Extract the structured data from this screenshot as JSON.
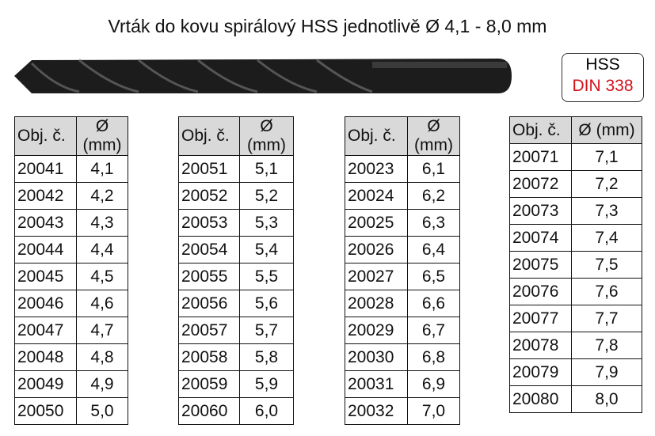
{
  "title": "Vrták do kovu spirálový HSS jednotlivě Ø 4,1 - 8,0 mm",
  "badge": {
    "line1": "HSS",
    "line2": "DIN 338"
  },
  "tables": [
    {
      "header": [
        "Obj. č.",
        "Ø (mm)"
      ],
      "rows": [
        [
          "20041",
          "4,1"
        ],
        [
          "20042",
          "4,2"
        ],
        [
          "20043",
          "4,3"
        ],
        [
          "20044",
          "4,4"
        ],
        [
          "20045",
          "4,5"
        ],
        [
          "20046",
          "4,6"
        ],
        [
          "20047",
          "4,7"
        ],
        [
          "20048",
          "4,8"
        ],
        [
          "20049",
          "4,9"
        ],
        [
          "20050",
          "5,0"
        ]
      ]
    },
    {
      "header": [
        "Obj. č.",
        "Ø (mm)"
      ],
      "rows": [
        [
          "20051",
          "5,1"
        ],
        [
          "20052",
          "5,2"
        ],
        [
          "20053",
          "5,3"
        ],
        [
          "20054",
          "5,4"
        ],
        [
          "20055",
          "5,5"
        ],
        [
          "20056",
          "5,6"
        ],
        [
          "20057",
          "5,7"
        ],
        [
          "20058",
          "5,8"
        ],
        [
          "20059",
          "5,9"
        ],
        [
          "20060",
          "6,0"
        ]
      ]
    },
    {
      "header": [
        "Obj. č.",
        "Ø (mm)"
      ],
      "rows": [
        [
          "20023",
          "6,1"
        ],
        [
          "20024",
          "6,2"
        ],
        [
          "20025",
          "6,3"
        ],
        [
          "20026",
          "6,4"
        ],
        [
          "20027",
          "6,5"
        ],
        [
          "20028",
          "6,6"
        ],
        [
          "20029",
          "6,7"
        ],
        [
          "20030",
          "6,8"
        ],
        [
          "20031",
          "6,9"
        ],
        [
          "20032",
          "7,0"
        ]
      ]
    },
    {
      "header": [
        "Obj. č.",
        "Ø (mm)"
      ],
      "rows": [
        [
          "20071",
          "7,1"
        ],
        [
          "20072",
          "7,2"
        ],
        [
          "20073",
          "7,3"
        ],
        [
          "20074",
          "7,4"
        ],
        [
          "20075",
          "7,5"
        ],
        [
          "20076",
          "7,6"
        ],
        [
          "20077",
          "7,7"
        ],
        [
          "20078",
          "7,8"
        ],
        [
          "20079",
          "7,9"
        ],
        [
          "20080",
          "8,0"
        ]
      ]
    }
  ]
}
